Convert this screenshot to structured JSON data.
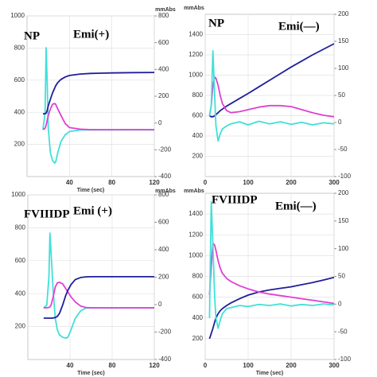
{
  "chart_data": [
    {
      "type": "line",
      "annotations": [
        "NP",
        "Emi(+)"
      ],
      "y2label": "mmAbs",
      "xlabel": "Time (sec)",
      "xlim": [
        0,
        120
      ],
      "xticks": [
        40,
        80,
        120
      ],
      "ylim": [
        0,
        1000
      ],
      "yticks": [
        200,
        400,
        600,
        800,
        1000
      ],
      "y2lim": [
        -400,
        800
      ],
      "y2ticks": [
        -400,
        -200,
        0,
        200,
        400,
        600,
        800
      ],
      "grid": true,
      "x": [
        15,
        17,
        18,
        19,
        20,
        22,
        24,
        26,
        27,
        29,
        32,
        36,
        40,
        50,
        60,
        80,
        100,
        120
      ],
      "series": [
        {
          "color": "#40e0d8",
          "values": [
            292,
            400,
            802,
            600,
            300,
            150,
            100,
            84,
            90,
            150,
            220,
            260,
            280,
            290,
            291,
            290,
            291,
            290
          ]
        },
        {
          "color": "#e040d0",
          "values": [
            292,
            300,
            320,
            350,
            380,
            420,
            450,
            455,
            450,
            420,
            380,
            330,
            305,
            295,
            292,
            292,
            292,
            292
          ]
        },
        {
          "color": "#1f1f9a",
          "values": [
            391,
            391,
            395,
            410,
            440,
            480,
            520,
            550,
            565,
            585,
            605,
            620,
            629,
            638,
            642,
            645,
            647,
            648
          ]
        }
      ]
    },
    {
      "type": "line",
      "annotations": [
        "NP",
        "Emi(—)"
      ],
      "ylabel": "mmAbs",
      "xlim": [
        0,
        300
      ],
      "xticks": [
        0,
        100,
        200,
        300
      ],
      "ylim": [
        0,
        1600
      ],
      "yticks": [
        200,
        400,
        600,
        800,
        1000,
        1200,
        1400
      ],
      "y2lim": [
        -100,
        200
      ],
      "y2ticks": [
        -100,
        -50,
        0,
        50,
        100,
        150,
        200
      ],
      "grid": true,
      "x": [
        10,
        14,
        18,
        22,
        25,
        30,
        35,
        40,
        50,
        60,
        80,
        100,
        125,
        150,
        175,
        200,
        225,
        250,
        275,
        300
      ],
      "series": [
        {
          "color": "#1f1f9a",
          "values": [
            600,
            590,
            590,
            600,
            610,
            630,
            650,
            665,
            695,
            720,
            770,
            820,
            885,
            950,
            1015,
            1080,
            1140,
            1200,
            1255,
            1310
          ]
        },
        {
          "color": "#e040d0",
          "values": [
            600,
            700,
            900,
            980,
            970,
            900,
            800,
            720,
            650,
            630,
            640,
            660,
            685,
            700,
            700,
            690,
            660,
            630,
            605,
            590
          ]
        },
        {
          "color": "#40e0d8",
          "values": [
            600,
            700,
            1240,
            800,
            500,
            350,
            420,
            470,
            500,
            520,
            540,
            510,
            545,
            520,
            540,
            515,
            535,
            510,
            530,
            520
          ]
        }
      ]
    },
    {
      "type": "line",
      "annotations": [
        "FVIIIDP",
        "Emi (+)"
      ],
      "y2label": "mmAbs",
      "xlabel": "Time (sec)",
      "xlim": [
        0,
        120
      ],
      "xticks": [
        40,
        80,
        120
      ],
      "ylim": [
        0,
        1000
      ],
      "yticks": [
        200,
        400,
        600,
        800,
        1000
      ],
      "y2lim": [
        -400,
        800
      ],
      "y2ticks": [
        -400,
        -200,
        0,
        200,
        400,
        600,
        800
      ],
      "grid": true,
      "x": [
        15,
        18,
        20,
        21,
        22,
        24,
        26,
        28,
        30,
        33,
        36,
        38,
        41,
        45,
        50,
        55,
        60,
        80,
        100,
        120
      ],
      "series": [
        {
          "color": "#40e0d8",
          "values": [
            314,
            330,
            500,
            768,
            650,
            420,
            250,
            180,
            150,
            135,
            130,
            135,
            180,
            250,
            295,
            312,
            314,
            313,
            314,
            313
          ]
        },
        {
          "color": "#e040d0",
          "values": [
            314,
            314,
            316,
            320,
            330,
            380,
            440,
            465,
            469,
            460,
            430,
            410,
            380,
            350,
            325,
            316,
            314,
            314,
            314,
            314
          ]
        },
        {
          "color": "#1f1f9a",
          "values": [
            251,
            251,
            251,
            251,
            251,
            252,
            255,
            262,
            280,
            330,
            390,
            420,
            455,
            485,
            498,
            502,
            503,
            503,
            503,
            503
          ]
        }
      ]
    },
    {
      "type": "line",
      "annotations": [
        "FVIIIDP",
        "Emi(—)"
      ],
      "ylabel": "mmAbs",
      "xlabel": "Time (sec)",
      "xlim": [
        0,
        300
      ],
      "xticks": [
        0,
        100,
        200,
        300
      ],
      "ylim": [
        0,
        1600
      ],
      "yticks": [
        200,
        400,
        600,
        800,
        1000,
        1200,
        1400
      ],
      "y2lim": [
        -100,
        200
      ],
      "y2ticks": [
        -100,
        -50,
        0,
        50,
        100,
        150,
        200
      ],
      "grid": true,
      "x": [
        10,
        14,
        18,
        22,
        25,
        30,
        35,
        40,
        50,
        60,
        80,
        100,
        125,
        150,
        175,
        200,
        225,
        250,
        275,
        300
      ],
      "series": [
        {
          "color": "#1f1f9a",
          "values": [
            200,
            250,
            300,
            360,
            400,
            440,
            470,
            490,
            520,
            545,
            585,
            620,
            650,
            670,
            685,
            700,
            720,
            740,
            765,
            790
          ]
        },
        {
          "color": "#e040d0",
          "values": [
            620,
            900,
            1120,
            1100,
            1050,
            950,
            880,
            830,
            780,
            750,
            710,
            680,
            650,
            630,
            615,
            600,
            585,
            570,
            555,
            540
          ]
        },
        {
          "color": "#40e0d8",
          "values": [
            400,
            1520,
            1100,
            600,
            400,
            300,
            380,
            440,
            490,
            500,
            520,
            510,
            530,
            520,
            535,
            515,
            530,
            520,
            535,
            525
          ]
        }
      ]
    }
  ]
}
